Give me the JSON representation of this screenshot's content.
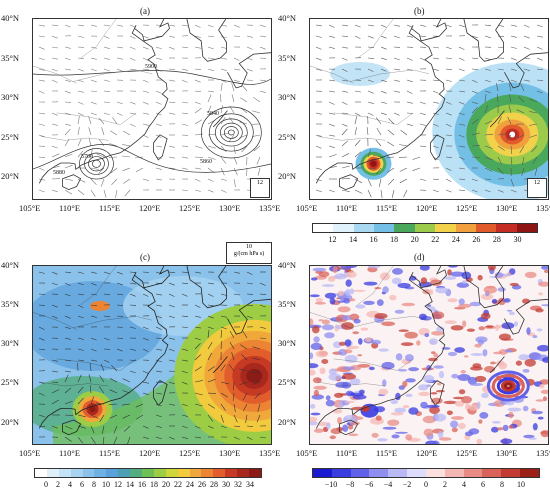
{
  "panels": [
    {
      "label": "(a)"
    },
    {
      "label": "(b)"
    },
    {
      "label": "(c)"
    },
    {
      "label": "(d)"
    }
  ],
  "lat_ticks": [
    "40°N",
    "35°N",
    "30°N",
    "25°N",
    "20°N"
  ],
  "lon_ticks": [
    "105°E",
    "110°E",
    "115°E",
    "120°E",
    "125°E",
    "130°E",
    "135°E"
  ],
  "panel_a": {
    "contour_labels": [
      "5900",
      "5840",
      "5860",
      "5880",
      "5700"
    ],
    "ref_vector": "12"
  },
  "panel_b": {
    "ref_vector": "12",
    "colorbar": {
      "labels": [
        "12",
        "14",
        "16",
        "18",
        "20",
        "22",
        "24",
        "26",
        "28",
        "30"
      ],
      "colors": [
        "#ffffff",
        "#e0f2fb",
        "#a9d9f2",
        "#73bfe6",
        "#4aa85c",
        "#9ccb4c",
        "#f2d24b",
        "#f0a13e",
        "#e15a2c",
        "#c42d23",
        "#8f1414"
      ]
    }
  },
  "panel_c": {
    "inset_value": "10",
    "inset_unit": "g/(cm hPa s)",
    "colorbar": {
      "labels": [
        "0",
        "2",
        "4",
        "6",
        "8",
        "10",
        "12",
        "14",
        "16",
        "18",
        "20",
        "22",
        "24",
        "26",
        "28",
        "30",
        "32",
        "34"
      ],
      "colors": [
        "#ffffff",
        "#dff0fb",
        "#c4e3f7",
        "#a6d3f1",
        "#8ac2eb",
        "#70b1e3",
        "#5aa0da",
        "#4d9fb4",
        "#52ad7f",
        "#6fbf57",
        "#9dcc45",
        "#cfd63c",
        "#f1cb3d",
        "#f0a83a",
        "#ec8434",
        "#e15e2c",
        "#c63a24",
        "#a8281e",
        "#8a1b16"
      ]
    }
  },
  "panel_d": {
    "colorbar": {
      "labels": [
        "−10",
        "−8",
        "−6",
        "−4",
        "−2",
        "0",
        "2",
        "4",
        "6",
        "8",
        "10"
      ],
      "colors": [
        "#1a1ad0",
        "#3a3be0",
        "#6061e8",
        "#8f8ff0",
        "#b9b9f6",
        "#dedcfb",
        "#fbe0e0",
        "#f4b8b4",
        "#e98c85",
        "#d9625a",
        "#c33a32",
        "#9a2018"
      ]
    }
  },
  "chart_data": [
    {
      "type": "heatmap",
      "panel": "a",
      "title": "(a)",
      "xlabel": "",
      "ylabel": "",
      "xlim": [
        105,
        135
      ],
      "ylim": [
        17,
        40
      ],
      "contours": [
        5700,
        5840,
        5860,
        5880,
        5900
      ],
      "features": [
        "typhoon centre near 113E 21.5N",
        "typhoon centre near 130E 25N"
      ]
    },
    {
      "type": "heatmap",
      "panel": "b",
      "title": "(b)",
      "xlim": [
        105,
        135
      ],
      "ylim": [
        17,
        40
      ],
      "colorbar_ticks": [
        12,
        14,
        16,
        18,
        20,
        22,
        24,
        26,
        28,
        30
      ],
      "maxima": [
        {
          "lon": 112.7,
          "lat": 21.5,
          "value": 30
        },
        {
          "lon": 130,
          "lat": 25.5,
          "value": 30
        }
      ]
    },
    {
      "type": "heatmap",
      "panel": "c",
      "title": "(c)",
      "xlim": [
        105,
        135
      ],
      "ylim": [
        17,
        40
      ],
      "colorbar_ticks": [
        0,
        2,
        4,
        6,
        8,
        10,
        12,
        14,
        16,
        18,
        20,
        22,
        24,
        26,
        28,
        30,
        32,
        34
      ],
      "maxima": [
        {
          "lon": 112.5,
          "lat": 21.5,
          "value": 34
        },
        {
          "lon": 131,
          "lat": 25.5,
          "value": 34
        }
      ]
    },
    {
      "type": "heatmap",
      "panel": "d",
      "title": "(d)",
      "xlim": [
        105,
        135
      ],
      "ylim": [
        17,
        40
      ],
      "colorbar_ticks": [
        -10,
        -8,
        -6,
        -4,
        -2,
        0,
        2,
        4,
        6,
        8,
        10
      ]
    }
  ]
}
